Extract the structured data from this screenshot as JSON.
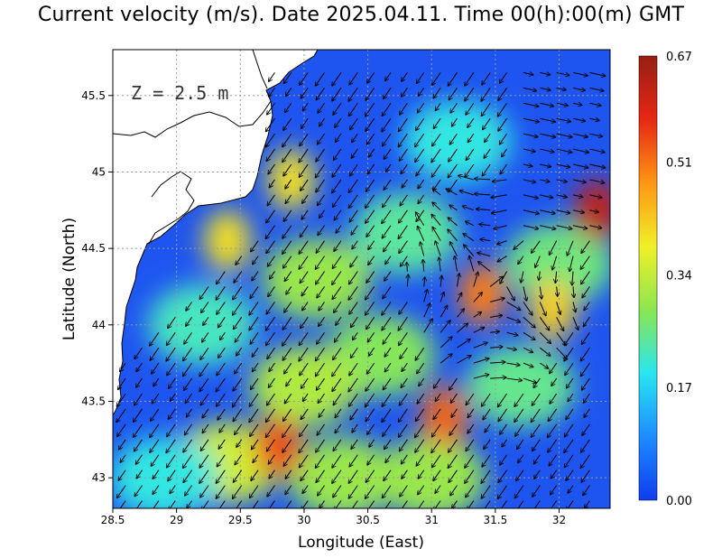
{
  "title": "Current velocity (m/s). Date 2025.04.11. Time 00(h):00(m) GMT",
  "depth_label": "Z = 2.5 m",
  "chart_data": {
    "type": "heatmap",
    "title": "Current velocity (m/s). Date 2025.04.11. Time 00(h):00(m) GMT",
    "xlabel": "Longitude (East)",
    "ylabel": "Latitude (North)",
    "xlim": [
      28.5,
      32.4
    ],
    "ylim": [
      42.8,
      45.8
    ],
    "x_ticks": [
      "28.5",
      "29",
      "29.5",
      "30",
      "30.5",
      "31",
      "31.5",
      "32"
    ],
    "x_tick_values": [
      28.5,
      29,
      29.5,
      30,
      30.5,
      31,
      31.5,
      32
    ],
    "y_ticks": [
      "43",
      "43.5",
      "44",
      "44.5",
      "45",
      "45.5"
    ],
    "y_tick_values": [
      43,
      43.5,
      44,
      44.5,
      45,
      45.5
    ],
    "grid": true,
    "colorbar": {
      "min": 0.0,
      "max": 0.67,
      "tick_labels": [
        "0.00",
        "0.17",
        "0.34",
        "0.51",
        "0.67"
      ],
      "tick_values": [
        0.0,
        0.17,
        0.34,
        0.51,
        0.67
      ],
      "colors": [
        "#0f3cf0",
        "#1e8cff",
        "#28e6f0",
        "#8ce650",
        "#f0f028",
        "#ff9614",
        "#e62814",
        "#961e14"
      ]
    },
    "speed_hotspots": [
      {
        "lon": 29.8,
        "lat": 43.2,
        "speed": 0.55
      },
      {
        "lon": 31.4,
        "lat": 44.2,
        "speed": 0.5
      },
      {
        "lon": 31.1,
        "lat": 43.4,
        "speed": 0.52
      },
      {
        "lon": 32.3,
        "lat": 44.75,
        "speed": 0.62
      },
      {
        "lon": 29.4,
        "lat": 44.55,
        "speed": 0.4
      },
      {
        "lon": 29.9,
        "lat": 44.95,
        "speed": 0.4
      },
      {
        "lon": 31.95,
        "lat": 44.1,
        "speed": 0.42
      }
    ],
    "flow": "predominantly southwestward with a cyclonic eddy near 31.5E 44.3N"
  }
}
